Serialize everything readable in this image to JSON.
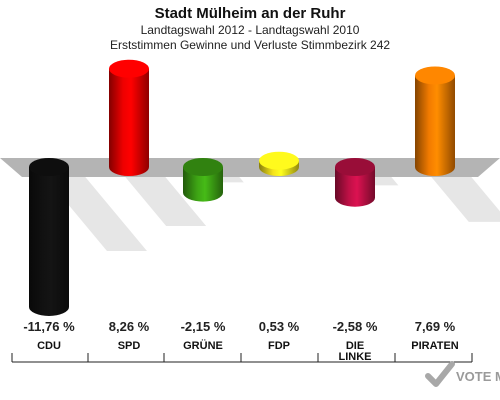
{
  "chart_data": {
    "type": "bar",
    "title": "Stadt Mülheim an der Ruhr",
    "subtitles": [
      "Landtagswahl 2012 - Landtagswahl 2010",
      "Erststimmen Gewinne und Verluste Stimmbezirk 242"
    ],
    "categories": [
      {
        "label": [
          "CDU"
        ],
        "value": -11.76,
        "display": "-11,76 %",
        "color": "#111111"
      },
      {
        "label": [
          "SPD"
        ],
        "value": 8.26,
        "display": "8,26 %",
        "color": "#ee0000"
      },
      {
        "label": [
          "GRÜNE"
        ],
        "value": -2.15,
        "display": "-2,15 %",
        "color": "#3da314"
      },
      {
        "label": [
          "FDP"
        ],
        "value": 0.53,
        "display": "0,53 %",
        "color": "#f5e31a"
      },
      {
        "label": [
          "DIE",
          "LINKE"
        ],
        "value": -2.58,
        "display": "-2,58 %",
        "color": "#bf1046"
      },
      {
        "label": [
          "PIRATEN"
        ],
        "value": 7.69,
        "display": "7,69 %",
        "color": "#f27b00"
      }
    ]
  },
  "watermark": "VOTE MANAGER"
}
